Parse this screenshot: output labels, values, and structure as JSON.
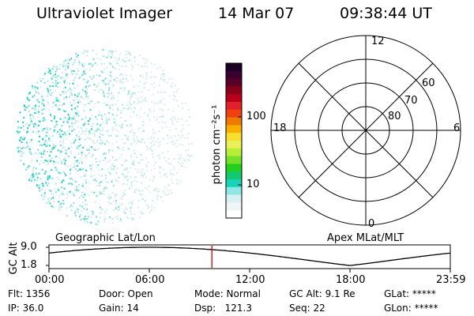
{
  "header": {
    "instrument": "Ultraviolet Imager",
    "date": "14 Mar 07",
    "time": "09:38:44 UT"
  },
  "colorbar": {
    "unit_label": "photon cm⁻²s⁻¹",
    "tick_labels": [
      "100",
      "10"
    ],
    "colors_top_to_bottom": [
      "#1a0025",
      "#3b0030",
      "#5a0028",
      "#8a0018",
      "#b8001a",
      "#e0202a",
      "#f04010",
      "#f07a00",
      "#f7b000",
      "#f7df30",
      "#e9f05a",
      "#b8ee38",
      "#74e02a",
      "#24cf20",
      "#14c870",
      "#19d3b8",
      "#8ee8e6",
      "#d8f0f0",
      "#f0f6f6",
      "#ffffff"
    ]
  },
  "polar_plot": {
    "mlt_labels": {
      "top": "12",
      "left": "18",
      "right": "6",
      "bottom": "0"
    },
    "latitude_labels": [
      "60",
      "70",
      "80"
    ]
  },
  "timeline": {
    "ylabel": "GC Alt",
    "y_ticks": [
      "9.0",
      "1.8"
    ],
    "left_title": "Geographic Lat/Lon",
    "right_title": "Apex MLat/MLT",
    "x_ticks": [
      "00:00",
      "06:00",
      "12:00",
      "18:00",
      "23:59"
    ],
    "current_time_fraction": 0.406
  },
  "footer": {
    "row1": [
      "Flt: 1356",
      "Door: Open",
      "Mode: Normal",
      "GC Alt: 9.1 Re",
      "GLat: *****"
    ],
    "row2": [
      "IP: 36.0",
      "Gain: 14",
      "Dsp:   121.3",
      "Seq: 22",
      "GLon: *****"
    ]
  }
}
